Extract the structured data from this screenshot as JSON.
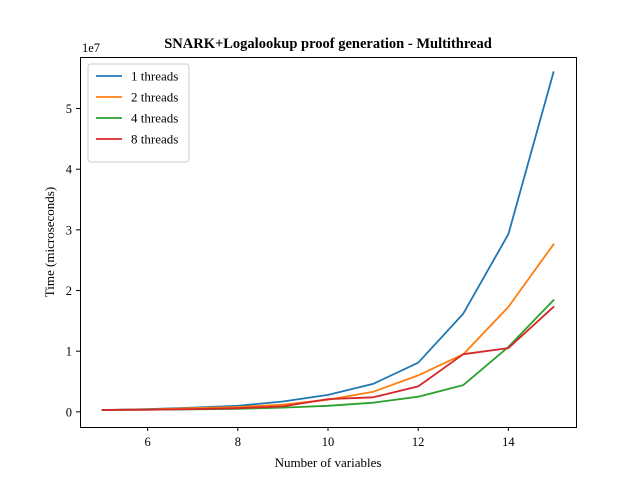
{
  "chart_data": {
    "type": "line",
    "title": "SNARK+Logalookup proof generation - Multithread",
    "xlabel": "Number of variables",
    "ylabel": "Time (microseconds)",
    "y_offset_label": "1e7",
    "y_scale_factor": 10000000,
    "xlim": [
      4.5,
      15.5
    ],
    "ylim": [
      -0.25,
      5.85
    ],
    "xticks": [
      6,
      8,
      10,
      12,
      14
    ],
    "yticks": [
      0,
      1,
      2,
      3,
      4,
      5
    ],
    "grid": false,
    "legend_position": "top-left",
    "x": [
      5,
      6,
      7,
      8,
      9,
      10,
      11,
      12,
      13,
      14,
      15
    ],
    "series": [
      {
        "name": "1 threads",
        "color": "#1f77b4",
        "values": [
          0.03,
          0.045,
          0.07,
          0.1,
          0.17,
          0.28,
          0.46,
          0.81,
          1.62,
          2.93,
          5.6
        ]
      },
      {
        "name": "2 threads",
        "color": "#ff7f0e",
        "values": [
          0.03,
          0.04,
          0.06,
          0.08,
          0.12,
          0.2,
          0.33,
          0.6,
          0.95,
          1.73,
          2.76
        ]
      },
      {
        "name": "4 threads",
        "color": "#2ca02c",
        "values": [
          0.03,
          0.035,
          0.04,
          0.05,
          0.07,
          0.1,
          0.15,
          0.25,
          0.44,
          1.07,
          1.84
        ]
      },
      {
        "name": "8 threads",
        "color": "#d62728",
        "values": [
          0.03,
          0.035,
          0.045,
          0.06,
          0.09,
          0.21,
          0.24,
          0.42,
          0.95,
          1.05,
          1.73
        ]
      }
    ]
  }
}
